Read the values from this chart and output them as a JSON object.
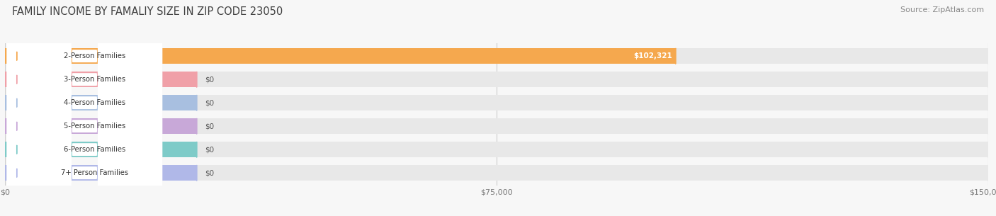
{
  "title": "FAMILY INCOME BY FAMALIY SIZE IN ZIP CODE 23050",
  "source": "Source: ZipAtlas.com",
  "categories": [
    "2-Person Families",
    "3-Person Families",
    "4-Person Families",
    "5-Person Families",
    "6-Person Families",
    "7+ Person Families"
  ],
  "values": [
    102321,
    0,
    0,
    0,
    0,
    0
  ],
  "bar_colors": [
    "#f5a84e",
    "#f0a0a8",
    "#a8bfe0",
    "#c8a8d8",
    "#7ecbc8",
    "#b0b8e8"
  ],
  "value_labels": [
    "$102,321",
    "$0",
    "$0",
    "$0",
    "$0",
    "$0"
  ],
  "xlim_max": 150000,
  "xticks": [
    0,
    75000,
    150000
  ],
  "xtick_labels": [
    "$0",
    "$75,000",
    "$150,000"
  ],
  "background_color": "#f7f7f7",
  "bar_bg_color": "#e8e8e8",
  "title_fontsize": 10.5,
  "source_fontsize": 8,
  "bar_height": 0.68,
  "bar_gap": 0.32
}
